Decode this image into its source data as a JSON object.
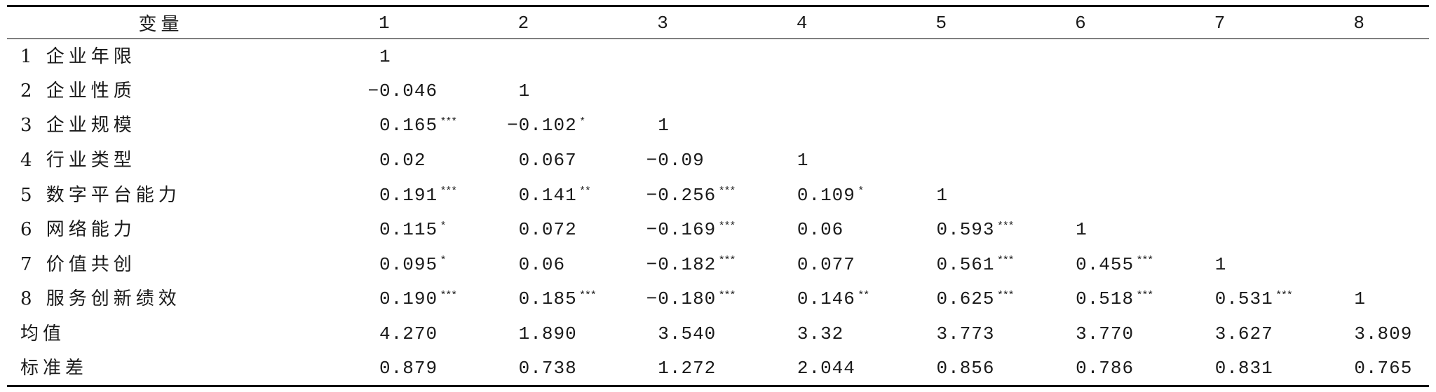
{
  "table": {
    "header": {
      "variable": "变量",
      "columns": [
        "1",
        "2",
        "3",
        "4",
        "5",
        "6",
        "7",
        "8"
      ]
    },
    "rows": [
      {
        "label": "1 企业年限",
        "cells": [
          {
            "v": "1"
          }
        ]
      },
      {
        "label": "2 企业性质",
        "cells": [
          {
            "v": "−0.046"
          },
          {
            "v": "1"
          }
        ]
      },
      {
        "label": "3 企业规模",
        "cells": [
          {
            "v": "0.165",
            "sig": "***"
          },
          {
            "v": "−0.102",
            "sig": "*"
          },
          {
            "v": "1"
          }
        ]
      },
      {
        "label": "4 行业类型",
        "cells": [
          {
            "v": "0.02"
          },
          {
            "v": "0.067"
          },
          {
            "v": "−0.09"
          },
          {
            "v": "1"
          }
        ]
      },
      {
        "label": "5 数字平台能力",
        "cells": [
          {
            "v": "0.191",
            "sig": "***"
          },
          {
            "v": "0.141",
            "sig": "**"
          },
          {
            "v": "−0.256",
            "sig": "***"
          },
          {
            "v": "0.109",
            "sig": "*"
          },
          {
            "v": "1"
          }
        ]
      },
      {
        "label": "6 网络能力",
        "cells": [
          {
            "v": "0.115",
            "sig": "*"
          },
          {
            "v": "0.072"
          },
          {
            "v": "−0.169",
            "sig": "***"
          },
          {
            "v": "0.06"
          },
          {
            "v": "0.593",
            "sig": "***"
          },
          {
            "v": "1"
          }
        ]
      },
      {
        "label": "7 价值共创",
        "cells": [
          {
            "v": "0.095",
            "sig": "*"
          },
          {
            "v": "0.06"
          },
          {
            "v": "−0.182",
            "sig": "***"
          },
          {
            "v": "0.077"
          },
          {
            "v": "0.561",
            "sig": "***"
          },
          {
            "v": "0.455",
            "sig": "***"
          },
          {
            "v": "1"
          }
        ]
      },
      {
        "label": "8 服务创新绩效",
        "cells": [
          {
            "v": "0.190",
            "sig": "***"
          },
          {
            "v": "0.185",
            "sig": "***"
          },
          {
            "v": "−0.180",
            "sig": "***"
          },
          {
            "v": "0.146",
            "sig": "**"
          },
          {
            "v": "0.625",
            "sig": "***"
          },
          {
            "v": "0.518",
            "sig": "***"
          },
          {
            "v": "0.531",
            "sig": "***"
          },
          {
            "v": "1"
          }
        ]
      },
      {
        "label": "均值",
        "cells": [
          {
            "v": "4.270"
          },
          {
            "v": "1.890"
          },
          {
            "v": "3.540"
          },
          {
            "v": "3.32"
          },
          {
            "v": "3.773"
          },
          {
            "v": "3.770"
          },
          {
            "v": "3.627"
          },
          {
            "v": "3.809"
          }
        ]
      },
      {
        "label": "标准差",
        "cells": [
          {
            "v": "0.879"
          },
          {
            "v": "0.738"
          },
          {
            "v": "1.272"
          },
          {
            "v": "2.044"
          },
          {
            "v": "0.856"
          },
          {
            "v": "0.786"
          },
          {
            "v": "0.831"
          },
          {
            "v": "0.765"
          }
        ]
      }
    ]
  }
}
